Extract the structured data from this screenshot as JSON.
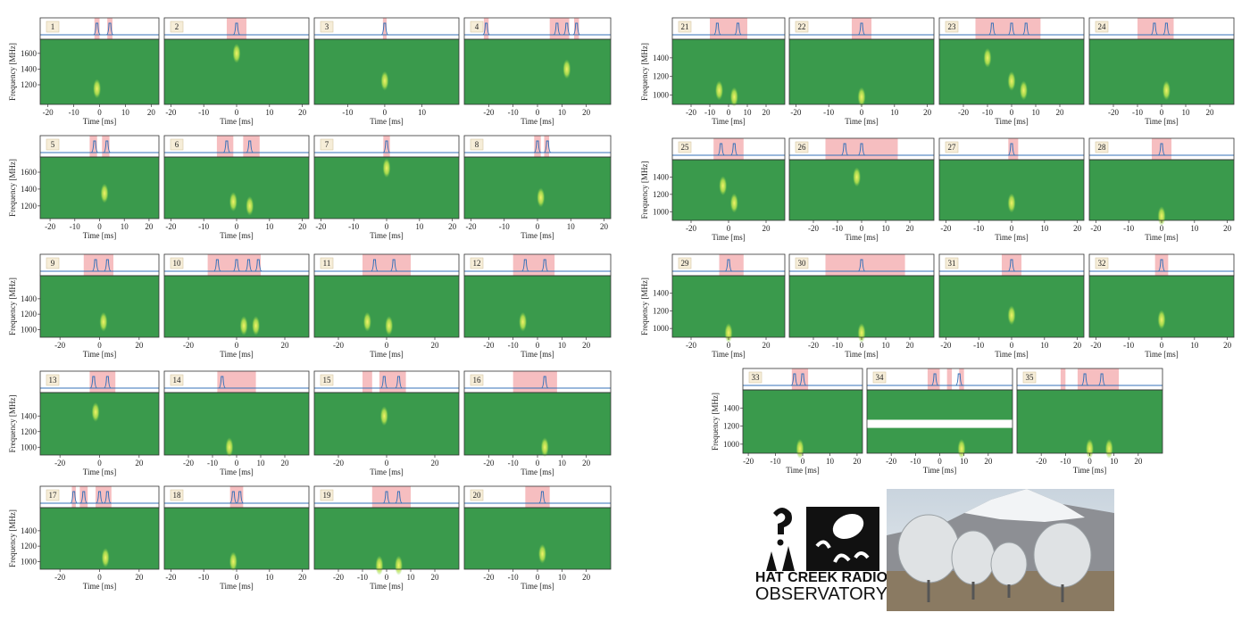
{
  "chart_data": [
    {
      "type": "spectrogram",
      "label": "1",
      "xlabel": "Time [ms]",
      "ylabel": "Frequency [MHz]",
      "xlim": [
        -23,
        23
      ],
      "xticks": [
        -20,
        -10,
        0,
        10,
        20
      ],
      "ylim": [
        950,
        1780
      ],
      "yticks": [
        1200,
        1400,
        1600
      ],
      "spans": [
        [
          -2,
          0
        ],
        [
          3,
          5
        ]
      ],
      "peaks": [
        -1,
        4
      ],
      "bursts": [
        [
          -1,
          1150
        ]
      ]
    },
    {
      "type": "spectrogram",
      "label": "2",
      "xlabel": "Time [ms]",
      "xlim": [
        -22,
        22
      ],
      "xticks": [
        -20,
        -10,
        0,
        10,
        20
      ],
      "ylim": [
        950,
        1780
      ],
      "spans": [
        [
          -3,
          3
        ]
      ],
      "peaks": [
        0
      ],
      "bursts": [
        [
          0,
          1600
        ]
      ]
    },
    {
      "type": "spectrogram",
      "label": "3",
      "xlabel": "Time [ms]",
      "xlim": [
        -19,
        20
      ],
      "xticks": [
        -10,
        0,
        10
      ],
      "ylim": [
        950,
        1780
      ],
      "spans": [
        [
          -0.5,
          0.5
        ]
      ],
      "peaks": [
        0
      ],
      "bursts": [
        [
          0,
          1250
        ]
      ]
    },
    {
      "type": "spectrogram",
      "label": "4",
      "xlabel": "Time [ms]",
      "xlim": [
        -30,
        30
      ],
      "xticks": [
        -20,
        -10,
        0,
        10,
        20
      ],
      "ylim": [
        950,
        1780
      ],
      "spans": [
        [
          -22,
          -20
        ],
        [
          5,
          13
        ],
        [
          15,
          17
        ]
      ],
      "peaks": [
        -21,
        8,
        12,
        16
      ],
      "bursts": [
        [
          12,
          1400
        ]
      ]
    },
    {
      "type": "spectrogram",
      "label": "5",
      "xlabel": "Time [ms]",
      "ylabel": "Frequency [MHz]",
      "xlim": [
        -24,
        24
      ],
      "xticks": [
        -20,
        -10,
        0,
        10,
        20
      ],
      "ylim": [
        1050,
        1780
      ],
      "yticks": [
        1200,
        1400,
        1600
      ],
      "spans": [
        [
          -4,
          -1
        ],
        [
          1,
          4
        ]
      ],
      "peaks": [
        -2,
        3
      ],
      "bursts": [
        [
          2,
          1350
        ]
      ]
    },
    {
      "type": "spectrogram",
      "label": "6",
      "xlabel": "Time [ms]",
      "xlim": [
        -22,
        22
      ],
      "xticks": [
        -20,
        -10,
        0,
        10,
        20
      ],
      "ylim": [
        1050,
        1780
      ],
      "spans": [
        [
          -6,
          -1
        ],
        [
          2,
          7
        ]
      ],
      "peaks": [
        -3,
        4
      ],
      "bursts": [
        [
          -1,
          1250
        ],
        [
          4,
          1200
        ]
      ]
    },
    {
      "type": "spectrogram",
      "label": "7",
      "xlabel": "Time [ms]",
      "xlim": [
        -22,
        22
      ],
      "xticks": [
        -20,
        -10,
        0,
        10,
        20
      ],
      "ylim": [
        1050,
        1780
      ],
      "spans": [
        [
          -1,
          1
        ]
      ],
      "peaks": [
        0
      ],
      "bursts": [
        [
          0,
          1650
        ]
      ]
    },
    {
      "type": "spectrogram",
      "label": "8",
      "xlabel": "Time [ms]",
      "xlim": [
        -22,
        22
      ],
      "xticks": [
        -20,
        -10,
        0,
        10,
        20
      ],
      "ylim": [
        1050,
        1780
      ],
      "spans": [
        [
          -1,
          1
        ],
        [
          2,
          3.5
        ]
      ],
      "peaks": [
        0,
        3
      ],
      "bursts": [
        [
          1,
          1300
        ]
      ]
    },
    {
      "type": "spectrogram",
      "label": "9",
      "xlabel": "Time [ms]",
      "ylabel": "Frequency [MHz]",
      "xlim": [
        -30,
        30
      ],
      "xticks": [
        -20,
        0,
        20
      ],
      "ylim": [
        900,
        1700
      ],
      "yticks": [
        1000,
        1200,
        1400
      ],
      "spans": [
        [
          -8,
          7
        ]
      ],
      "peaks": [
        -2,
        4
      ],
      "bursts": [
        [
          2,
          1100
        ]
      ]
    },
    {
      "type": "spectrogram",
      "label": "10",
      "xlabel": "Time [ms]",
      "xlim": [
        -30,
        30
      ],
      "xticks": [
        -20,
        0,
        20
      ],
      "ylim": [
        900,
        1700
      ],
      "spans": [
        [
          -12,
          10
        ]
      ],
      "peaks": [
        -8,
        0,
        5,
        9
      ],
      "bursts": [
        [
          3,
          1050
        ],
        [
          8,
          1050
        ]
      ]
    },
    {
      "type": "spectrogram",
      "label": "11",
      "xlabel": "Time [ms]",
      "xlim": [
        -30,
        30
      ],
      "xticks": [
        -20,
        0,
        20
      ],
      "ylim": [
        900,
        1700
      ],
      "spans": [
        [
          -10,
          10
        ]
      ],
      "peaks": [
        -5,
        3
      ],
      "bursts": [
        [
          -8,
          1100
        ],
        [
          1,
          1050
        ]
      ]
    },
    {
      "type": "spectrogram",
      "label": "12",
      "xlabel": "Time [ms]",
      "xlim": [
        -30,
        30
      ],
      "xticks": [
        -20,
        -10,
        0,
        10,
        20
      ],
      "ylim": [
        900,
        1700
      ],
      "spans": [
        [
          -10,
          7
        ]
      ],
      "peaks": [
        -5,
        3
      ],
      "bursts": [
        [
          -6,
          1100
        ]
      ]
    },
    {
      "type": "spectrogram",
      "label": "13",
      "xlabel": "Time [ms]",
      "ylabel": "Frequency [MHz]",
      "xlim": [
        -30,
        30
      ],
      "xticks": [
        -20,
        0,
        20
      ],
      "ylim": [
        900,
        1700
      ],
      "yticks": [
        1000,
        1200,
        1400
      ],
      "spans": [
        [
          -5,
          8
        ]
      ],
      "peaks": [
        -3,
        4
      ],
      "bursts": [
        [
          -2,
          1450
        ]
      ]
    },
    {
      "type": "spectrogram",
      "label": "14",
      "xlabel": "Time [ms]",
      "xlim": [
        -30,
        30
      ],
      "xticks": [
        -20,
        -10,
        0,
        10,
        20
      ],
      "ylim": [
        900,
        1700
      ],
      "spans": [
        [
          -8,
          8
        ]
      ],
      "peaks": [
        -6
      ],
      "bursts": [
        [
          -3,
          1000
        ]
      ]
    },
    {
      "type": "spectrogram",
      "label": "15",
      "xlabel": "Time [ms]",
      "xlim": [
        -30,
        30
      ],
      "xticks": [
        -20,
        0,
        20
      ],
      "ylim": [
        900,
        1700
      ],
      "spans": [
        [
          -10,
          -6
        ],
        [
          -3,
          8
        ]
      ],
      "peaks": [
        -1,
        5
      ],
      "bursts": [
        [
          -1,
          1400
        ]
      ]
    },
    {
      "type": "spectrogram",
      "label": "16",
      "xlabel": "Time [ms]",
      "xlim": [
        -30,
        30
      ],
      "xticks": [
        -20,
        -10,
        0,
        10,
        20
      ],
      "ylim": [
        900,
        1700
      ],
      "spans": [
        [
          -10,
          8
        ]
      ],
      "peaks": [
        3
      ],
      "bursts": [
        [
          3,
          1000
        ]
      ]
    },
    {
      "type": "spectrogram",
      "label": "17",
      "xlabel": "Time [ms]",
      "ylabel": "Frequency [MHz]",
      "xlim": [
        -30,
        30
      ],
      "xticks": [
        -20,
        0,
        20
      ],
      "ylim": [
        900,
        1700
      ],
      "yticks": [
        1000,
        1200,
        1400
      ],
      "spans": [
        [
          -14,
          -12
        ],
        [
          -10,
          -6
        ],
        [
          -2,
          6
        ]
      ],
      "peaks": [
        -13,
        -8,
        0,
        4
      ],
      "bursts": [
        [
          3,
          1050
        ]
      ]
    },
    {
      "type": "spectrogram",
      "label": "18",
      "xlabel": "Time [ms]",
      "xlim": [
        -22,
        22
      ],
      "xticks": [
        -20,
        -10,
        0,
        10,
        20
      ],
      "ylim": [
        900,
        1700
      ],
      "spans": [
        [
          -2,
          2
        ]
      ],
      "peaks": [
        -1,
        1
      ],
      "bursts": [
        [
          -1,
          1000
        ]
      ]
    },
    {
      "type": "spectrogram",
      "label": "19",
      "xlabel": "Time [ms]",
      "xlim": [
        -30,
        30
      ],
      "xticks": [
        -20,
        -10,
        0,
        10,
        20
      ],
      "ylim": [
        900,
        1700
      ],
      "spans": [
        [
          -6,
          10
        ]
      ],
      "peaks": [
        0,
        5
      ],
      "bursts": [
        [
          -3,
          950
        ],
        [
          5,
          950
        ]
      ]
    },
    {
      "type": "spectrogram",
      "label": "20",
      "xlabel": "Time [ms]",
      "xlim": [
        -30,
        30
      ],
      "xticks": [
        -20,
        -10,
        0,
        10,
        20
      ],
      "ylim": [
        900,
        1700
      ],
      "spans": [
        [
          -5,
          5
        ]
      ],
      "peaks": [
        2
      ],
      "bursts": [
        [
          2,
          1100
        ]
      ]
    },
    {
      "type": "spectrogram",
      "label": "21",
      "xlabel": "Time [ms]",
      "ylabel": "Frequency [MHz]",
      "xlim": [
        -30,
        30
      ],
      "xticks": [
        -20,
        -10,
        0,
        10,
        20
      ],
      "ylim": [
        900,
        1600
      ],
      "yticks": [
        1000,
        1200,
        1400
      ],
      "spans": [
        [
          -10,
          10
        ]
      ],
      "peaks": [
        -6,
        5
      ],
      "bursts": [
        [
          -5,
          1050
        ],
        [
          3,
          980
        ]
      ]
    },
    {
      "type": "spectrogram",
      "label": "22",
      "xlabel": "Time [ms]",
      "xlim": [
        -22,
        22
      ],
      "xticks": [
        -20,
        -10,
        0,
        10,
        20
      ],
      "ylim": [
        900,
        1600
      ],
      "spans": [
        [
          -3,
          3
        ]
      ],
      "peaks": [
        0
      ],
      "bursts": [
        [
          0,
          980
        ]
      ]
    },
    {
      "type": "spectrogram",
      "label": "23",
      "xlabel": "Time [ms]",
      "xlim": [
        -30,
        30
      ],
      "xticks": [
        -20,
        -10,
        0,
        10,
        20
      ],
      "ylim": [
        900,
        1600
      ],
      "spans": [
        [
          -15,
          12
        ]
      ],
      "peaks": [
        -8,
        0,
        6
      ],
      "bursts": [
        [
          -10,
          1400
        ],
        [
          0,
          1150
        ],
        [
          5,
          1050
        ]
      ]
    },
    {
      "type": "spectrogram",
      "label": "24",
      "xlabel": "Time [ms]",
      "xlim": [
        -30,
        30
      ],
      "xticks": [
        -20,
        -10,
        0,
        10,
        20
      ],
      "ylim": [
        900,
        1600
      ],
      "spans": [
        [
          -10,
          5
        ]
      ],
      "peaks": [
        -3,
        2
      ],
      "bursts": [
        [
          2,
          1050
        ]
      ]
    },
    {
      "type": "spectrogram",
      "label": "25",
      "xlabel": "Time [ms]",
      "ylabel": "Frequency [MHz]",
      "xlim": [
        -30,
        30
      ],
      "xticks": [
        -20,
        0,
        20
      ],
      "ylim": [
        900,
        1600
      ],
      "yticks": [
        1000,
        1200,
        1400
      ],
      "spans": [
        [
          -8,
          8
        ]
      ],
      "peaks": [
        -4,
        3
      ],
      "bursts": [
        [
          -3,
          1300
        ],
        [
          3,
          1100
        ]
      ]
    },
    {
      "type": "spectrogram",
      "label": "26",
      "xlabel": "Time [ms]",
      "xlim": [
        -30,
        30
      ],
      "xticks": [
        -20,
        -10,
        0,
        10,
        20
      ],
      "ylim": [
        900,
        1600
      ],
      "spans": [
        [
          -15,
          15
        ]
      ],
      "peaks": [
        -7,
        0
      ],
      "bursts": [
        [
          -2,
          1400
        ]
      ]
    },
    {
      "type": "spectrogram",
      "label": "27",
      "xlabel": "Time [ms]",
      "xlim": [
        -22,
        22
      ],
      "xticks": [
        -20,
        -10,
        0,
        10,
        20
      ],
      "ylim": [
        900,
        1600
      ],
      "spans": [
        [
          -1,
          2
        ]
      ],
      "peaks": [
        0
      ],
      "bursts": [
        [
          0,
          1100
        ]
      ]
    },
    {
      "type": "spectrogram",
      "label": "28",
      "xlabel": "Time [ms]",
      "xlim": [
        -22,
        22
      ],
      "xticks": [
        -20,
        -10,
        0,
        10,
        20
      ],
      "ylim": [
        900,
        1600
      ],
      "spans": [
        [
          -3,
          3
        ]
      ],
      "peaks": [
        0
      ],
      "bursts": [
        [
          0,
          950
        ]
      ]
    },
    {
      "type": "spectrogram",
      "label": "29",
      "xlabel": "Time [ms]",
      "ylabel": "Frequency [MHz]",
      "xlim": [
        -30,
        30
      ],
      "xticks": [
        -20,
        0,
        20
      ],
      "ylim": [
        900,
        1600
      ],
      "yticks": [
        1000,
        1200,
        1400
      ],
      "spans": [
        [
          -5,
          8
        ]
      ],
      "peaks": [
        0
      ],
      "bursts": [
        [
          0,
          950
        ]
      ]
    },
    {
      "type": "spectrogram",
      "label": "30",
      "xlabel": "Time [ms]",
      "xlim": [
        -30,
        30
      ],
      "xticks": [
        -20,
        -10,
        0,
        10,
        20
      ],
      "ylim": [
        900,
        1600
      ],
      "spans": [
        [
          -15,
          18
        ]
      ],
      "peaks": [
        0
      ],
      "bursts": [
        [
          0,
          950
        ]
      ]
    },
    {
      "type": "spectrogram",
      "label": "31",
      "xlabel": "Time [ms]",
      "xlim": [
        -22,
        22
      ],
      "xticks": [
        -20,
        -10,
        0,
        10,
        20
      ],
      "ylim": [
        900,
        1600
      ],
      "spans": [
        [
          -3,
          3
        ]
      ],
      "peaks": [
        0
      ],
      "bursts": [
        [
          0,
          1150
        ]
      ]
    },
    {
      "type": "spectrogram",
      "label": "32",
      "xlabel": "Time [ms]",
      "xlim": [
        -22,
        22
      ],
      "xticks": [
        -20,
        -10,
        0,
        10,
        20
      ],
      "ylim": [
        900,
        1600
      ],
      "spans": [
        [
          -2,
          2
        ]
      ],
      "peaks": [
        0
      ],
      "bursts": [
        [
          0,
          1100
        ]
      ]
    },
    {
      "type": "spectrogram",
      "label": "33",
      "xlabel": "Time [ms]",
      "ylabel": "Frequency [MHz]",
      "xlim": [
        -22,
        22
      ],
      "xticks": [
        -20,
        -10,
        0,
        10,
        20
      ],
      "ylim": [
        900,
        1600
      ],
      "yticks": [
        1000,
        1200,
        1400
      ],
      "spans": [
        [
          -4,
          2
        ]
      ],
      "peaks": [
        -3,
        0
      ],
      "bursts": [
        [
          -1,
          950
        ]
      ]
    },
    {
      "type": "spectrogram",
      "label": "34",
      "xlabel": "Time [ms]",
      "xlim": [
        -30,
        30
      ],
      "xticks": [
        -20,
        -10,
        0,
        10,
        20
      ],
      "ylim": [
        900,
        1600
      ],
      "mask": [
        1180,
        1270
      ],
      "spans": [
        [
          -5,
          0
        ],
        [
          3,
          5
        ],
        [
          8,
          10
        ]
      ],
      "peaks": [
        -2,
        8
      ],
      "bursts": [
        [
          9,
          950
        ]
      ]
    },
    {
      "type": "spectrogram",
      "label": "35",
      "xlabel": "Time [ms]",
      "xlim": [
        -30,
        30
      ],
      "xticks": [
        -20,
        -10,
        0,
        10,
        20
      ],
      "ylim": [
        900,
        1600
      ],
      "spans": [
        [
          -12,
          -10
        ],
        [
          -5,
          12
        ]
      ],
      "peaks": [
        -2,
        5
      ],
      "bursts": [
        [
          0,
          950
        ],
        [
          8,
          950
        ]
      ]
    }
  ],
  "logo": {
    "line1": "HAT CREEK RADIO",
    "line2": "OBSERVATORY"
  }
}
